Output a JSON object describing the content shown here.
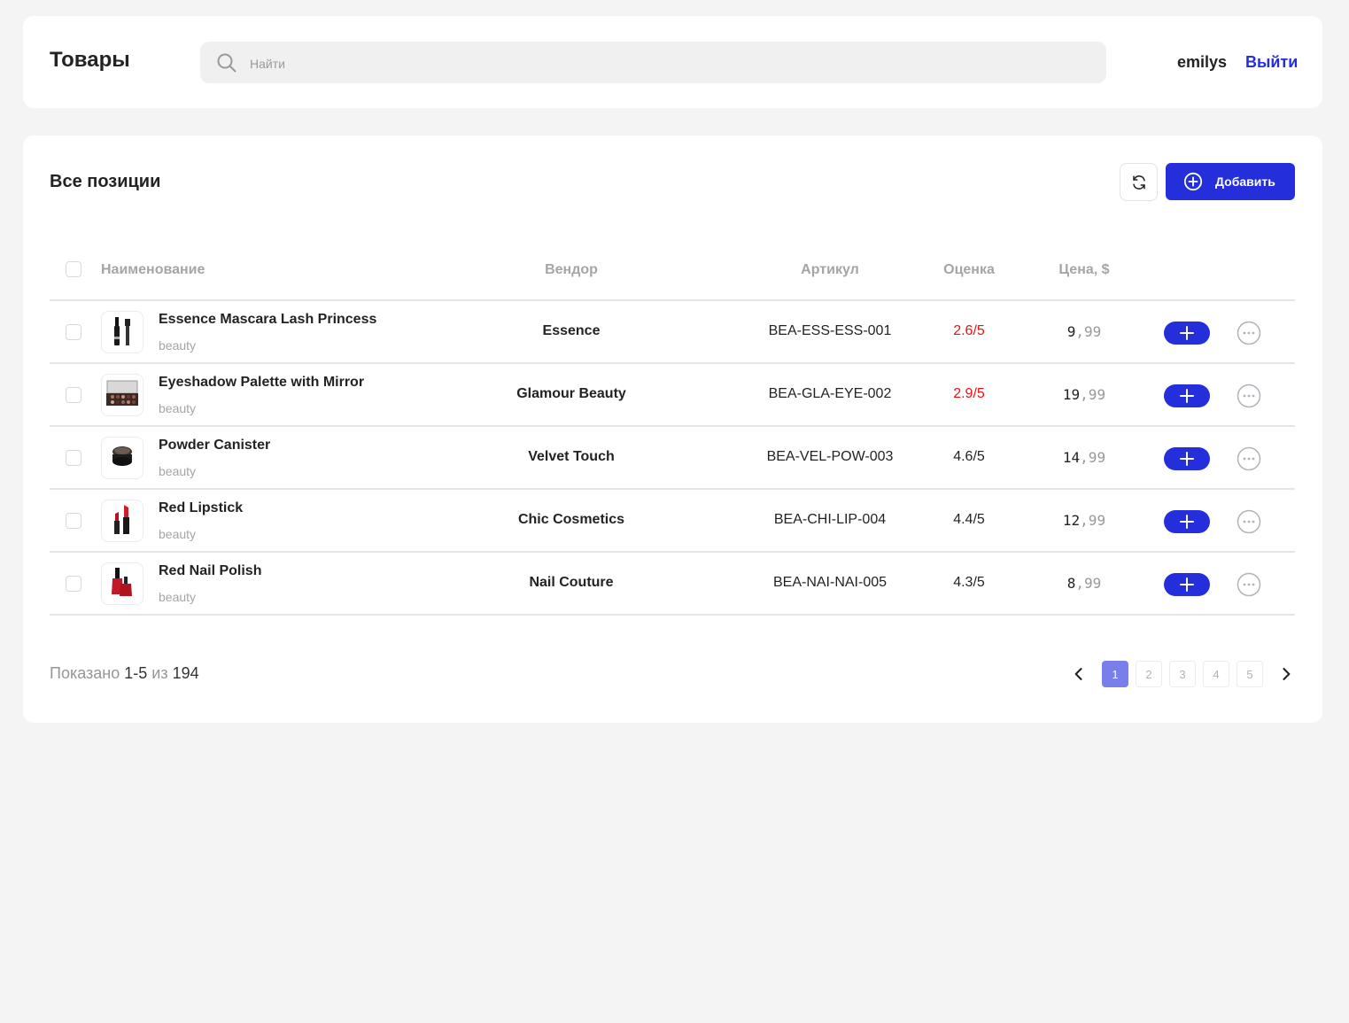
{
  "header": {
    "title": "Товары",
    "search_placeholder": "Найти",
    "username": "emilys",
    "logout_label": "Выйти"
  },
  "section": {
    "title": "Все позиции",
    "add_label": "Добавить"
  },
  "table": {
    "columns": {
      "name": "Наименование",
      "vendor": "Вендор",
      "sku": "Артикул",
      "rating": "Оценка",
      "price": "Цена, $"
    },
    "rows": [
      {
        "name": "Essence Mascara Lash Princess",
        "category": "beauty",
        "vendor": "Essence",
        "sku": "BEA-ESS-ESS-001",
        "rating": "2.6/5",
        "rating_low": true,
        "price_int": "9",
        "price_dec": ",99",
        "image": "mascara"
      },
      {
        "name": "Eyeshadow Palette with Mirror",
        "category": "beauty",
        "vendor": "Glamour Beauty",
        "sku": "BEA-GLA-EYE-002",
        "rating": "2.9/5",
        "rating_low": true,
        "price_int": "19",
        "price_dec": ",99",
        "image": "palette"
      },
      {
        "name": "Powder Canister",
        "category": "beauty",
        "vendor": "Velvet Touch",
        "sku": "BEA-VEL-POW-003",
        "rating": "4.6/5",
        "rating_low": false,
        "price_int": "14",
        "price_dec": ",99",
        "image": "powder"
      },
      {
        "name": "Red Lipstick",
        "category": "beauty",
        "vendor": "Chic Cosmetics",
        "sku": "BEA-CHI-LIP-004",
        "rating": "4.4/5",
        "rating_low": false,
        "price_int": "12",
        "price_dec": ",99",
        "image": "lipstick"
      },
      {
        "name": "Red Nail Polish",
        "category": "beauty",
        "vendor": "Nail Couture",
        "sku": "BEA-NAI-NAI-005",
        "rating": "4.3/5",
        "rating_low": false,
        "price_int": "8",
        "price_dec": ",99",
        "image": "nail-polish"
      }
    ]
  },
  "footer": {
    "shown_prefix": "Показано",
    "shown_range": "1-5",
    "shown_of": "из",
    "total": "194"
  },
  "pagination": {
    "pages": [
      "1",
      "2",
      "3",
      "4",
      "5"
    ],
    "current": "1"
  },
  "colors": {
    "accent": "#242edb",
    "low_rating": "#f11010",
    "active_page": "#797fea"
  }
}
